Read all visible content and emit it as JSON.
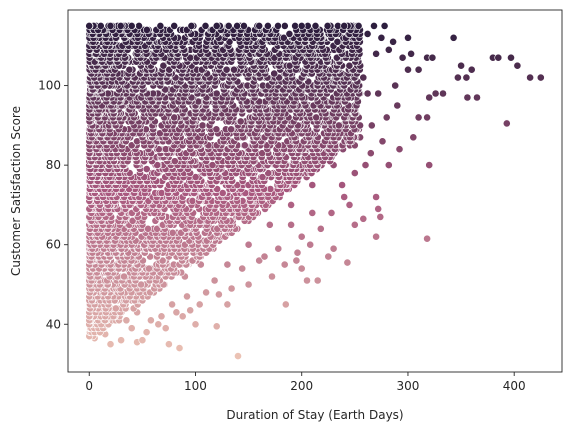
{
  "chart_data": {
    "type": "scatter",
    "title": "",
    "xlabel": "Duration of Stay (Earth Days)",
    "ylabel": "Customer Satisfaction Score",
    "xlim": [
      -20,
      445
    ],
    "ylim": [
      28,
      119
    ],
    "xticks": [
      0,
      100,
      200,
      300,
      400
    ],
    "yticks": [
      40,
      60,
      80,
      100
    ],
    "grid": false,
    "legend": "none",
    "hue": "satisfaction score",
    "color_low": "#ebc2b4",
    "color_mid": "#a8587e",
    "color_high": "#2d1e3e",
    "x_range_observed": [
      0,
      425
    ],
    "y_range_observed": [
      32,
      115
    ],
    "points": [
      [
        0,
        115
      ],
      [
        20,
        115
      ],
      [
        40,
        115
      ],
      [
        80,
        115
      ],
      [
        120,
        115
      ],
      [
        160,
        115
      ],
      [
        200,
        115
      ],
      [
        240,
        115
      ],
      [
        268,
        115
      ],
      [
        278,
        115
      ],
      [
        275,
        112
      ],
      [
        282,
        109
      ],
      [
        300,
        112
      ],
      [
        303,
        108
      ],
      [
        310,
        104
      ],
      [
        318,
        107
      ],
      [
        323,
        107
      ],
      [
        343,
        112
      ],
      [
        347,
        102
      ],
      [
        350,
        105
      ],
      [
        356,
        97
      ],
      [
        365,
        97
      ],
      [
        380,
        107
      ],
      [
        385,
        107
      ],
      [
        397,
        107
      ],
      [
        403,
        105
      ],
      [
        415,
        102
      ],
      [
        425,
        102
      ],
      [
        300,
        104
      ],
      [
        290,
        95
      ],
      [
        280,
        92
      ],
      [
        272,
        98
      ],
      [
        320,
        97
      ],
      [
        326,
        98
      ],
      [
        333,
        98
      ],
      [
        360,
        104
      ],
      [
        355,
        102
      ],
      [
        393,
        90.5
      ],
      [
        305,
        87
      ],
      [
        310,
        92
      ],
      [
        318,
        92
      ],
      [
        320,
        80
      ],
      [
        318,
        61.5
      ],
      [
        265,
        83
      ],
      [
        260,
        80
      ],
      [
        258,
        66.5
      ],
      [
        270,
        72
      ],
      [
        272,
        69
      ],
      [
        274,
        67
      ],
      [
        270,
        62
      ],
      [
        243,
        55.5
      ],
      [
        230,
        59
      ],
      [
        225,
        57
      ],
      [
        215,
        51
      ],
      [
        205,
        51
      ],
      [
        200,
        54
      ],
      [
        185,
        45
      ],
      [
        195,
        56
      ],
      [
        178,
        59
      ],
      [
        165,
        57
      ],
      [
        150,
        50
      ],
      [
        140,
        32
      ],
      [
        130,
        45
      ],
      [
        122,
        47.5
      ],
      [
        120,
        39.5
      ],
      [
        100,
        40
      ],
      [
        95,
        43.5
      ],
      [
        85,
        34
      ],
      [
        82,
        43
      ],
      [
        75,
        35
      ],
      [
        65,
        40
      ],
      [
        50,
        36
      ],
      [
        45,
        35.5
      ],
      [
        30,
        36
      ],
      [
        20,
        35
      ],
      [
        15,
        37.5
      ],
      [
        10,
        38
      ],
      [
        5,
        36.5
      ],
      [
        0,
        40
      ],
      [
        250,
        65
      ],
      [
        245,
        70
      ],
      [
        238,
        75
      ],
      [
        250,
        85
      ],
      [
        235,
        90
      ],
      [
        225,
        95
      ],
      [
        215,
        100
      ],
      [
        205,
        105
      ],
      [
        190,
        110
      ],
      [
        175,
        112
      ],
      [
        160,
        108
      ],
      [
        140,
        103
      ],
      [
        120,
        98
      ],
      [
        100,
        95
      ],
      [
        80,
        92
      ],
      [
        60,
        88
      ],
      [
        40,
        85
      ],
      [
        20,
        82
      ],
      [
        0,
        80
      ],
      [
        10,
        70
      ],
      [
        30,
        68
      ],
      [
        50,
        65
      ],
      [
        70,
        62
      ],
      [
        90,
        60
      ],
      [
        110,
        58
      ],
      [
        130,
        55
      ],
      [
        150,
        60
      ],
      [
        170,
        65
      ],
      [
        190,
        70
      ],
      [
        210,
        75
      ],
      [
        230,
        80
      ],
      [
        220,
        85
      ],
      [
        200,
        88
      ],
      [
        180,
        92
      ],
      [
        160,
        96
      ],
      [
        140,
        90
      ],
      [
        120,
        85
      ],
      [
        100,
        80
      ],
      [
        80,
        75
      ],
      [
        60,
        70
      ],
      [
        40,
        60
      ],
      [
        20,
        55
      ],
      [
        10,
        50
      ],
      [
        30,
        48
      ],
      [
        50,
        46
      ],
      [
        70,
        50
      ],
      [
        90,
        52
      ],
      [
        110,
        48
      ],
      [
        5,
        45
      ],
      [
        15,
        42
      ],
      [
        25,
        44
      ],
      [
        35,
        41
      ],
      [
        45,
        43
      ],
      [
        55,
        47
      ],
      [
        200,
        62
      ],
      [
        190,
        65
      ],
      [
        210,
        68
      ],
      [
        180,
        75
      ],
      [
        170,
        82
      ],
      [
        150,
        78
      ],
      [
        130,
        72
      ],
      [
        110,
        68
      ],
      [
        95,
        65
      ],
      [
        75,
        57
      ],
      [
        60,
        53
      ],
      [
        42,
        52
      ],
      [
        25,
        58
      ],
      [
        12,
        62
      ],
      [
        2,
        66
      ],
      [
        3,
        90
      ],
      [
        8,
        100
      ],
      [
        14,
        108
      ],
      [
        33,
        112
      ],
      [
        58,
        105
      ],
      [
        88,
        110
      ],
      [
        112,
        113
      ],
      [
        148,
        111
      ],
      [
        185,
        103
      ],
      [
        222,
        108
      ],
      [
        240,
        100
      ],
      [
        255,
        105
      ],
      [
        262,
        98
      ],
      [
        248,
        92
      ],
      [
        230,
        87
      ],
      [
        212,
        82
      ],
      [
        195,
        78
      ],
      [
        178,
        85
      ],
      [
        162,
        72
      ],
      [
        146,
        68
      ],
      [
        128,
        62
      ],
      [
        105,
        55
      ],
      [
        92,
        47
      ],
      [
        78,
        45
      ],
      [
        68,
        42
      ],
      [
        54,
        38
      ],
      [
        288,
        100
      ],
      [
        295,
        107
      ],
      [
        286,
        111
      ],
      [
        262,
        113
      ],
      [
        252,
        110
      ],
      [
        232,
        113
      ],
      [
        214,
        114
      ],
      [
        196,
        113
      ],
      [
        176,
        114
      ],
      [
        156,
        114
      ],
      [
        136,
        113
      ],
      [
        116,
        114
      ],
      [
        96,
        113
      ],
      [
        76,
        114
      ],
      [
        56,
        113
      ],
      [
        36,
        114
      ],
      [
        16,
        113
      ],
      [
        4,
        112
      ],
      [
        6,
        104
      ],
      [
        22,
        102
      ],
      [
        44,
        99
      ],
      [
        66,
        97
      ],
      [
        86,
        101
      ],
      [
        106,
        104
      ],
      [
        126,
        107
      ],
      [
        142,
        100
      ],
      [
        166,
        99
      ],
      [
        186,
        96
      ],
      [
        206,
        94
      ],
      [
        226,
        91
      ],
      [
        244,
        95
      ],
      [
        266,
        90
      ],
      [
        276,
        86
      ],
      [
        282,
        80
      ],
      [
        292,
        84
      ],
      [
        250,
        78
      ],
      [
        240,
        72
      ],
      [
        228,
        68
      ],
      [
        218,
        64
      ],
      [
        208,
        60
      ],
      [
        196,
        58
      ],
      [
        184,
        55
      ],
      [
        172,
        52
      ],
      [
        160,
        56
      ],
      [
        144,
        54
      ],
      [
        134,
        49
      ],
      [
        118,
        51
      ],
      [
        104,
        45
      ],
      [
        88,
        42
      ],
      [
        72,
        39
      ],
      [
        58,
        41
      ],
      [
        40,
        39
      ],
      [
        28,
        41
      ],
      [
        18,
        45
      ],
      [
        8,
        47
      ],
      [
        1,
        52
      ],
      [
        3,
        58
      ],
      [
        6,
        75
      ],
      [
        9,
        85
      ],
      [
        12,
        95
      ],
      [
        25,
        90
      ],
      [
        38,
        78
      ],
      [
        52,
        74
      ],
      [
        64,
        80
      ],
      [
        78,
        84
      ],
      [
        94,
        88
      ],
      [
        108,
        92
      ],
      [
        124,
        96
      ],
      [
        138,
        94
      ],
      [
        152,
        90
      ],
      [
        168,
        88
      ],
      [
        182,
        80
      ],
      [
        198,
        84
      ],
      [
        214,
        90
      ],
      [
        234,
        97
      ],
      [
        258,
        102
      ],
      [
        270,
        108
      ],
      [
        246,
        114
      ]
    ]
  }
}
